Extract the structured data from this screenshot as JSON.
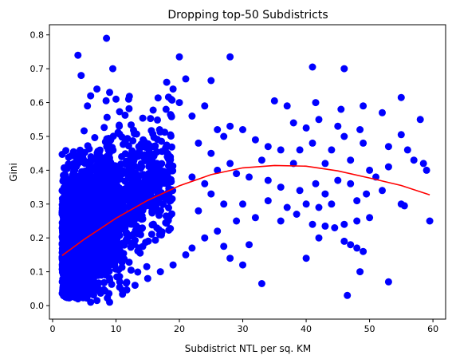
{
  "chart_data": {
    "type": "scatter",
    "title": "Dropping top-50 Subdistricts",
    "xlabel": "Subdistrict NTL per sq. KM",
    "ylabel": "Gini",
    "xlim": [
      -0.5,
      62.0
    ],
    "ylim": [
      -0.04,
      0.83
    ],
    "x_ticks": [
      0,
      10,
      20,
      30,
      40,
      50,
      60
    ],
    "x_tick_labels": [
      "0",
      "10",
      "20",
      "30",
      "40",
      "50",
      "60"
    ],
    "y_ticks": [
      0.0,
      0.1,
      0.2,
      0.3,
      0.4,
      0.5,
      0.6,
      0.7,
      0.8
    ],
    "y_tick_labels": [
      "0.0",
      "0.1",
      "0.2",
      "0.3",
      "0.4",
      "0.5",
      "0.6",
      "0.7",
      "0.8"
    ],
    "grid": false,
    "legend": "none",
    "point_color": "#0000ff",
    "fit_color": "#ff0000",
    "points": [
      [
        8.5,
        0.79
      ],
      [
        4.0,
        0.74
      ],
      [
        9.5,
        0.7
      ],
      [
        4.5,
        0.68
      ],
      [
        20.0,
        0.735
      ],
      [
        28.0,
        0.735
      ],
      [
        41.0,
        0.705
      ],
      [
        46.0,
        0.7
      ],
      [
        6.0,
        0.62
      ],
      [
        7.0,
        0.64
      ],
      [
        5.5,
        0.59
      ],
      [
        9.0,
        0.63
      ],
      [
        10.0,
        0.61
      ],
      [
        12.0,
        0.61
      ],
      [
        18.0,
        0.66
      ],
      [
        19.0,
        0.64
      ],
      [
        21.0,
        0.67
      ],
      [
        25.0,
        0.665
      ],
      [
        20.0,
        0.6
      ],
      [
        24.0,
        0.59
      ],
      [
        22.0,
        0.56
      ],
      [
        26.0,
        0.52
      ],
      [
        28.0,
        0.53
      ],
      [
        30.0,
        0.52
      ],
      [
        23.0,
        0.48
      ],
      [
        25.0,
        0.45
      ],
      [
        27.0,
        0.5
      ],
      [
        35.0,
        0.605
      ],
      [
        37.0,
        0.59
      ],
      [
        41.5,
        0.6
      ],
      [
        45.5,
        0.58
      ],
      [
        49.0,
        0.59
      ],
      [
        55.0,
        0.615
      ],
      [
        52.0,
        0.57
      ],
      [
        38.0,
        0.54
      ],
      [
        40.0,
        0.525
      ],
      [
        42.0,
        0.55
      ],
      [
        45.0,
        0.53
      ],
      [
        46.0,
        0.5
      ],
      [
        48.5,
        0.52
      ],
      [
        55.0,
        0.505
      ],
      [
        58.0,
        0.55
      ],
      [
        32.0,
        0.49
      ],
      [
        34.0,
        0.47
      ],
      [
        36.0,
        0.46
      ],
      [
        39.0,
        0.46
      ],
      [
        41.0,
        0.48
      ],
      [
        44.0,
        0.46
      ],
      [
        49.0,
        0.48
      ],
      [
        53.0,
        0.47
      ],
      [
        56.0,
        0.46
      ],
      [
        33.0,
        0.43
      ],
      [
        38.0,
        0.42
      ],
      [
        43.0,
        0.42
      ],
      [
        47.0,
        0.43
      ],
      [
        50.0,
        0.4
      ],
      [
        51.0,
        0.38
      ],
      [
        53.0,
        0.41
      ],
      [
        57.0,
        0.43
      ],
      [
        58.5,
        0.42
      ],
      [
        59.0,
        0.4
      ],
      [
        31.0,
        0.38
      ],
      [
        34.0,
        0.37
      ],
      [
        36.0,
        0.35
      ],
      [
        39.0,
        0.34
      ],
      [
        41.5,
        0.36
      ],
      [
        43.0,
        0.33
      ],
      [
        45.0,
        0.37
      ],
      [
        47.0,
        0.36
      ],
      [
        49.5,
        0.33
      ],
      [
        52.0,
        0.34
      ],
      [
        30.0,
        0.3
      ],
      [
        34.0,
        0.31
      ],
      [
        37.0,
        0.29
      ],
      [
        40.0,
        0.3
      ],
      [
        42.0,
        0.29
      ],
      [
        44.0,
        0.3
      ],
      [
        48.0,
        0.31
      ],
      [
        55.0,
        0.3
      ],
      [
        55.5,
        0.295
      ],
      [
        59.5,
        0.25
      ],
      [
        32.0,
        0.26
      ],
      [
        36.0,
        0.25
      ],
      [
        38.5,
        0.27
      ],
      [
        41.0,
        0.24
      ],
      [
        43.0,
        0.235
      ],
      [
        46.0,
        0.24
      ],
      [
        48.0,
        0.25
      ],
      [
        42.0,
        0.2
      ],
      [
        44.5,
        0.23
      ],
      [
        50.0,
        0.26
      ],
      [
        40.0,
        0.14
      ],
      [
        46.0,
        0.19
      ],
      [
        48.0,
        0.17
      ],
      [
        47.0,
        0.18
      ],
      [
        49.0,
        0.16
      ],
      [
        48.5,
        0.1
      ],
      [
        46.5,
        0.03
      ],
      [
        53.0,
        0.07
      ],
      [
        33.0,
        0.065
      ],
      [
        30.0,
        0.12
      ],
      [
        28.0,
        0.14
      ],
      [
        27.0,
        0.175
      ],
      [
        31.0,
        0.18
      ],
      [
        22.0,
        0.38
      ],
      [
        24.0,
        0.36
      ],
      [
        26.0,
        0.4
      ],
      [
        28.0,
        0.42
      ],
      [
        29.0,
        0.39
      ],
      [
        25.0,
        0.33
      ],
      [
        27.0,
        0.3
      ],
      [
        23.0,
        0.28
      ],
      [
        29.0,
        0.25
      ],
      [
        26.0,
        0.22
      ],
      [
        24.0,
        0.2
      ],
      [
        22.0,
        0.17
      ],
      [
        21.0,
        0.15
      ],
      [
        3.0,
        0.04
      ],
      [
        4.0,
        0.02
      ],
      [
        5.0,
        0.03
      ],
      [
        6.0,
        0.01
      ],
      [
        7.0,
        0.015
      ],
      [
        9.0,
        0.01
      ],
      [
        11.0,
        0.045
      ],
      [
        13.0,
        0.06
      ],
      [
        15.0,
        0.08
      ],
      [
        17.0,
        0.1
      ],
      [
        19.0,
        0.12
      ]
    ],
    "cloud": {
      "count": 2700,
      "x_range": [
        1.5,
        19.0
      ],
      "comment_free": true
    },
    "fit_curve": [
      [
        1.5,
        0.148
      ],
      [
        5.0,
        0.196
      ],
      [
        10.0,
        0.258
      ],
      [
        15.0,
        0.311
      ],
      [
        20.0,
        0.354
      ],
      [
        25.0,
        0.387
      ],
      [
        30.0,
        0.407
      ],
      [
        35.0,
        0.414
      ],
      [
        40.0,
        0.412
      ],
      [
        45.0,
        0.398
      ],
      [
        50.0,
        0.377
      ],
      [
        55.0,
        0.355
      ],
      [
        59.5,
        0.327
      ]
    ]
  }
}
